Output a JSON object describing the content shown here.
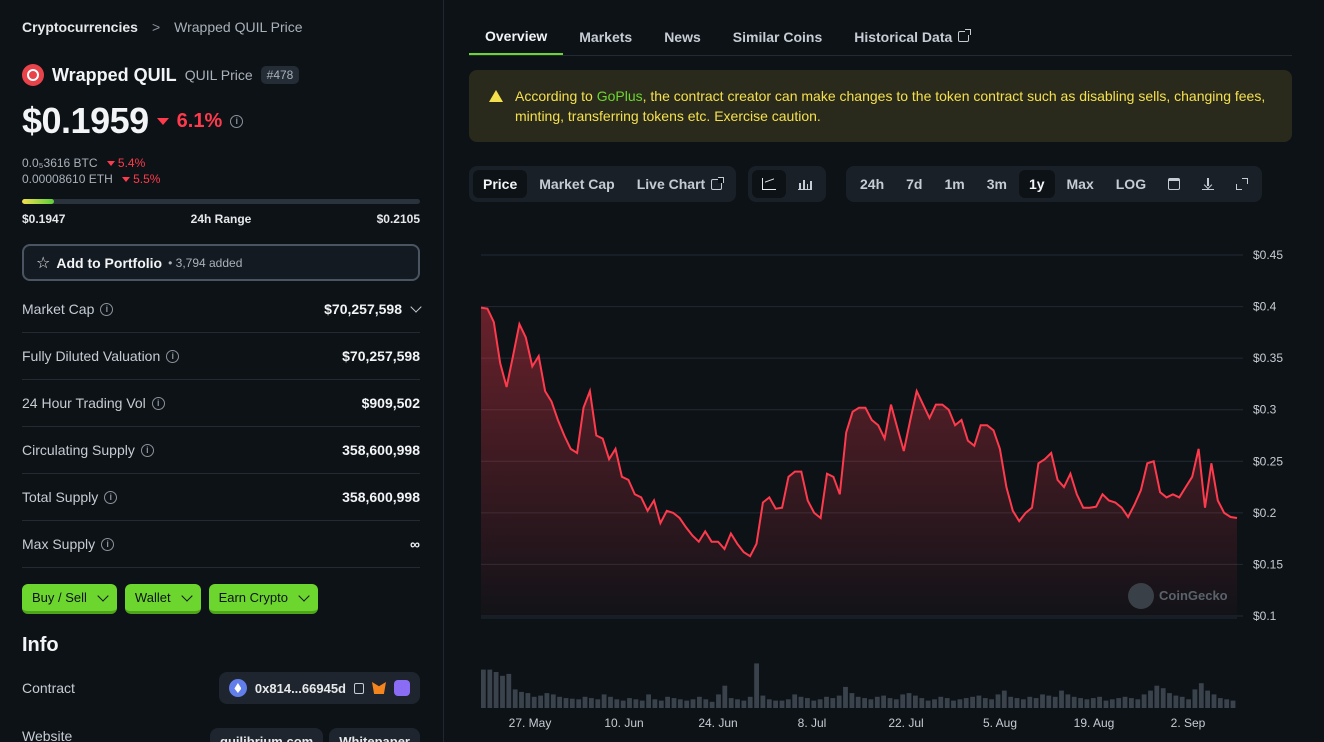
{
  "breadcrumb": {
    "root": "Cryptocurrencies",
    "separator": ">",
    "current": "Wrapped QUIL Price"
  },
  "coin": {
    "name": "Wrapped QUIL",
    "symbol_label": "QUIL Price",
    "rank": "#478"
  },
  "price": {
    "value": "$0.1959",
    "change": "6.1%",
    "direction": "down"
  },
  "sub_prices": [
    {
      "value": "0.0₅3616 BTC",
      "change": "5.4%"
    },
    {
      "value": "0.00008610 ETH",
      "change": "5.5%"
    }
  ],
  "range": {
    "low": "$0.1947",
    "label": "24h Range",
    "high": "$0.2105",
    "position_fraction": 0.08
  },
  "portfolio": {
    "label": "Add to Portfolio",
    "added": "• 3,794 added"
  },
  "stats": [
    {
      "key": "Market Cap",
      "value": "$70,257,598",
      "has_chevron": true
    },
    {
      "key": "Fully Diluted Valuation",
      "value": "$70,257,598",
      "has_chevron": false
    },
    {
      "key": "24 Hour Trading Vol",
      "value": "$909,502",
      "has_chevron": false
    },
    {
      "key": "Circulating Supply",
      "value": "358,600,998",
      "has_chevron": false
    },
    {
      "key": "Total Supply",
      "value": "358,600,998",
      "has_chevron": false
    },
    {
      "key": "Max Supply",
      "value": "∞",
      "has_chevron": false
    }
  ],
  "action_buttons": [
    "Buy / Sell",
    "Wallet",
    "Earn Crypto"
  ],
  "info": {
    "title": "Info",
    "contract_label": "Contract",
    "contract_address": "0x814...66945d",
    "website_label": "Website",
    "website_links": [
      "quilibrium.com",
      "Whitepaper"
    ]
  },
  "tabs": [
    "Overview",
    "Markets",
    "News",
    "Similar Coins",
    "Historical Data"
  ],
  "active_tab": "Overview",
  "warning": {
    "prefix": "According to ",
    "link": "GoPlus",
    "text": ", the contract creator can make changes to the token contract such as disabling sells, changing fees, minting, transferring tokens etc. Exercise caution."
  },
  "chart_toolbar": {
    "views": [
      "Price",
      "Market Cap",
      "Live Chart"
    ],
    "active_view": "Price",
    "chart_types": [
      "line-chart-icon",
      "candlestick-icon"
    ],
    "ranges": [
      "24h",
      "7d",
      "1m",
      "3m",
      "1y",
      "Max",
      "LOG"
    ],
    "active_range": "1y"
  },
  "colors": {
    "accent": "#6dd62e",
    "negative": "#ff3a4c",
    "warning": "#f4e04d",
    "background": "#0d1217"
  },
  "chart_data": {
    "type": "line",
    "series": [
      {
        "values": [
          0.399,
          0.398,
          0.385,
          0.345,
          0.322,
          0.352,
          0.383,
          0.37,
          0.342,
          0.352,
          0.318,
          0.308,
          0.29,
          0.275,
          0.262,
          0.258,
          0.302,
          0.318,
          0.275,
          0.272,
          0.252,
          0.262,
          0.235,
          0.232,
          0.218,
          0.215,
          0.202,
          0.212,
          0.19,
          0.202,
          0.2,
          0.195,
          0.186,
          0.178,
          0.172,
          0.182,
          0.172,
          0.172,
          0.165,
          0.18,
          0.17,
          0.162,
          0.158,
          0.17,
          0.21,
          0.215,
          0.204,
          0.205,
          0.235,
          0.24,
          0.24,
          0.212,
          0.2,
          0.195,
          0.238,
          0.235,
          0.218,
          0.278,
          0.298,
          0.302,
          0.302,
          0.29,
          0.285,
          0.272,
          0.305,
          0.282,
          0.26,
          0.29,
          0.318,
          0.305,
          0.292,
          0.305,
          0.305,
          0.3,
          0.285,
          0.29,
          0.27,
          0.265,
          0.285,
          0.285,
          0.28,
          0.262,
          0.225,
          0.202,
          0.192,
          0.2,
          0.205,
          0.248,
          0.252,
          0.258,
          0.232,
          0.225,
          0.238,
          0.218,
          0.205,
          0.205,
          0.206,
          0.218,
          0.212,
          0.21,
          0.205,
          0.196,
          0.208,
          0.222,
          0.248,
          0.25,
          0.22,
          0.215,
          0.218,
          0.215,
          0.225,
          0.235,
          0.262,
          0.205,
          0.248,
          0.212,
          0.2,
          0.196,
          0.195
        ]
      }
    ],
    "volume": [
      0.62,
      0.62,
      0.58,
      0.52,
      0.55,
      0.3,
      0.26,
      0.24,
      0.18,
      0.2,
      0.24,
      0.22,
      0.18,
      0.16,
      0.15,
      0.14,
      0.18,
      0.16,
      0.14,
      0.22,
      0.18,
      0.14,
      0.12,
      0.16,
      0.14,
      0.12,
      0.22,
      0.14,
      0.12,
      0.18,
      0.16,
      0.14,
      0.12,
      0.14,
      0.18,
      0.14,
      0.1,
      0.22,
      0.36,
      0.16,
      0.14,
      0.12,
      0.18,
      0.72,
      0.2,
      0.14,
      0.12,
      0.12,
      0.14,
      0.22,
      0.18,
      0.16,
      0.12,
      0.14,
      0.18,
      0.16,
      0.2,
      0.34,
      0.24,
      0.18,
      0.16,
      0.14,
      0.18,
      0.2,
      0.16,
      0.14,
      0.22,
      0.24,
      0.2,
      0.16,
      0.12,
      0.14,
      0.18,
      0.16,
      0.12,
      0.14,
      0.16,
      0.18,
      0.2,
      0.16,
      0.14,
      0.22,
      0.28,
      0.18,
      0.16,
      0.14,
      0.18,
      0.16,
      0.22,
      0.2,
      0.18,
      0.28,
      0.22,
      0.18,
      0.16,
      0.14,
      0.16,
      0.18,
      0.12,
      0.14,
      0.16,
      0.18,
      0.16,
      0.14,
      0.22,
      0.28,
      0.36,
      0.32,
      0.24,
      0.2,
      0.18,
      0.14,
      0.3,
      0.4,
      0.28,
      0.22,
      0.16,
      0.14,
      0.12
    ],
    "x_tick_labels": [
      "27. May",
      "10. Jun",
      "24. Jun",
      "8. Jul",
      "22. Jul",
      "5. Aug",
      "19. Aug",
      "2. Sep"
    ],
    "y_tick_labels": [
      "$0.45",
      "$0.4",
      "$0.35",
      "$0.3",
      "$0.25",
      "$0.2",
      "$0.15",
      "$0.1"
    ],
    "ylim": [
      0.1,
      0.45
    ],
    "watermark": "CoinGecko",
    "grid": true,
    "line_color": "#ff3a4c"
  }
}
